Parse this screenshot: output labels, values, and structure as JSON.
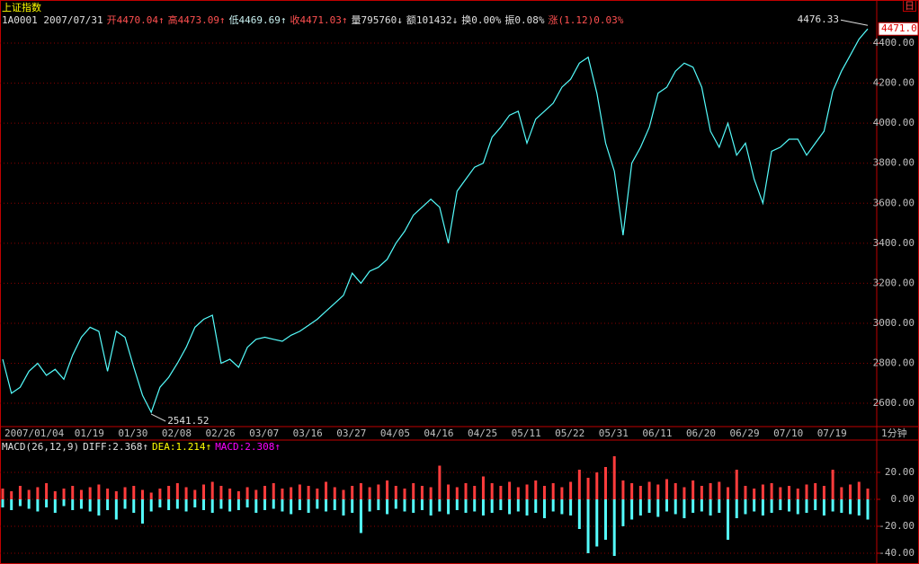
{
  "header": {
    "title": "上证指数",
    "icon": "日",
    "info": [
      {
        "text": "1A0001 2007/07/31",
        "color": "#e0e0e0"
      },
      {
        "text": "开4470.04↑",
        "color": "#ff5050"
      },
      {
        "text": "高4473.09↑",
        "color": "#ff5050"
      },
      {
        "text": "低4469.69↑",
        "color": "#c8f0f0"
      },
      {
        "text": "收4471.03↑",
        "color": "#ff5050"
      },
      {
        "text": "量795760↓",
        "color": "#e0e0e0"
      },
      {
        "text": "额101432↓",
        "color": "#e0e0e0"
      },
      {
        "text": "换0.00%",
        "color": "#e0e0e0"
      },
      {
        "text": "振0.08%",
        "color": "#e0e0e0"
      },
      {
        "text": "涨(1.12)0.03%",
        "color": "#ff5050"
      }
    ]
  },
  "chart_data": [
    {
      "type": "line",
      "categories": [
        "2007/01/04",
        null,
        null,
        null,
        null,
        null,
        null,
        null,
        "01/19",
        null,
        null,
        null,
        null,
        "01/30",
        null,
        null,
        null,
        null,
        "02/08",
        null,
        null,
        null,
        null,
        "02/26",
        null,
        null,
        null,
        null,
        "03/07",
        null,
        null,
        null,
        null,
        "03/16",
        null,
        null,
        null,
        null,
        "03/27",
        null,
        null,
        null,
        null,
        "04/05",
        null,
        null,
        null,
        null,
        "04/16",
        null,
        null,
        null,
        null,
        "04/25",
        null,
        null,
        null,
        null,
        "05/11",
        null,
        null,
        null,
        null,
        "05/22",
        null,
        null,
        null,
        null,
        "05/31",
        null,
        null,
        null,
        null,
        "06/11",
        null,
        null,
        null,
        null,
        "06/20",
        null,
        null,
        null,
        null,
        "06/29",
        null,
        null,
        null,
        null,
        "07/10",
        null,
        null,
        null,
        null,
        "07/19",
        null,
        null,
        null,
        null,
        null,
        null
      ],
      "values": [
        2820,
        2650,
        2680,
        2760,
        2800,
        2740,
        2770,
        2720,
        2840,
        2930,
        2980,
        2960,
        2760,
        2960,
        2930,
        2780,
        2640,
        2555,
        2680,
        2730,
        2800,
        2880,
        2980,
        3020,
        3040,
        2800,
        2820,
        2780,
        2880,
        2920,
        2930,
        2920,
        2910,
        2940,
        2960,
        2990,
        3020,
        3060,
        3100,
        3140,
        3250,
        3200,
        3260,
        3280,
        3320,
        3400,
        3460,
        3540,
        3580,
        3620,
        3580,
        3400,
        3660,
        3720,
        3780,
        3800,
        3930,
        3980,
        4040,
        4060,
        3900,
        4020,
        4060,
        4100,
        4180,
        4220,
        4300,
        4330,
        4150,
        3900,
        3760,
        3440,
        3800,
        3880,
        3980,
        4150,
        4180,
        4260,
        4300,
        4280,
        4180,
        3960,
        3880,
        4000,
        3840,
        3900,
        3720,
        3600,
        3860,
        3880,
        3920,
        3920,
        3840,
        3900,
        3960,
        4160,
        4260,
        4340,
        4420,
        4471.03
      ],
      "color": "#54fcfc",
      "ylim": [
        2488,
        4508
      ],
      "yticks": [
        {
          "value": 2600,
          "label": "2600.00"
        },
        {
          "value": 2800,
          "label": "2800.00"
        },
        {
          "value": 3000,
          "label": "3000.00"
        },
        {
          "value": 3200,
          "label": "3200.00"
        },
        {
          "value": 3400,
          "label": "3400.00"
        },
        {
          "value": 3600,
          "label": "3600.00"
        },
        {
          "value": 3800,
          "label": "3800.00"
        },
        {
          "value": 4000,
          "label": "4000.00"
        },
        {
          "value": 4200,
          "label": "4200.00"
        },
        {
          "value": 4400,
          "label": "4400.00"
        }
      ],
      "grid": true,
      "max_label": "4476.33",
      "min_label": "2541.52",
      "last_label": "4471.0",
      "x_unit": "1分钟"
    },
    {
      "type": "bar",
      "title_items": [
        {
          "text": "MACD(26,12,9)",
          "color": "#e0e0e0"
        },
        {
          "text": "DIFF:2.368↑",
          "color": "#e0e0e0"
        },
        {
          "text": "DEA:1.214↑",
          "color": "#ffff00"
        },
        {
          "text": "MACD:2.308↑",
          "color": "#ff00ff"
        }
      ],
      "series": [
        {
          "color": "#ff3c3c",
          "values": [
            8,
            6,
            10,
            7,
            9,
            12,
            6,
            8,
            10,
            7,
            9,
            11,
            8,
            6,
            9,
            10,
            7,
            5,
            8,
            10,
            12,
            9,
            7,
            11,
            13,
            10,
            8,
            6,
            9,
            7,
            10,
            12,
            8,
            9,
            11,
            10,
            8,
            13,
            9,
            7,
            10,
            12,
            9,
            11,
            14,
            10,
            8,
            12,
            10,
            9,
            25,
            11,
            9,
            12,
            10,
            17,
            12,
            10,
            13,
            9,
            11,
            14,
            10,
            12,
            9,
            13,
            22,
            16,
            20,
            24,
            32,
            14,
            12,
            10,
            13,
            11,
            15,
            12,
            9,
            14,
            10,
            12,
            13,
            9,
            22,
            10,
            8,
            11,
            12,
            9,
            10,
            8,
            11,
            12,
            10,
            22,
            9,
            11,
            13,
            8
          ]
        },
        {
          "color": "#54fcfc",
          "values": [
            -6,
            -8,
            -5,
            -7,
            -9,
            -6,
            -10,
            -5,
            -8,
            -7,
            -9,
            -12,
            -8,
            -15,
            -7,
            -10,
            -18,
            -9,
            -6,
            -8,
            -7,
            -9,
            -6,
            -8,
            -10,
            -7,
            -9,
            -8,
            -6,
            -10,
            -8,
            -7,
            -9,
            -11,
            -8,
            -10,
            -7,
            -9,
            -8,
            -12,
            -10,
            -25,
            -9,
            -8,
            -11,
            -7,
            -9,
            -10,
            -8,
            -12,
            -9,
            -11,
            -8,
            -10,
            -9,
            -12,
            -10,
            -8,
            -11,
            -9,
            -12,
            -10,
            -14,
            -9,
            -11,
            -12,
            -22,
            -40,
            -35,
            -30,
            -42,
            -20,
            -15,
            -12,
            -10,
            -13,
            -9,
            -11,
            -14,
            -10,
            -9,
            -12,
            -10,
            -30,
            -14,
            -11,
            -9,
            -12,
            -10,
            -8,
            -9,
            -11,
            -10,
            -8,
            -12,
            -9,
            -10,
            -11,
            -12,
            -15
          ]
        }
      ],
      "ylim": [
        -48,
        42
      ],
      "yticks": [
        {
          "value": 20,
          "label": "20.00"
        },
        {
          "value": 0,
          "label": "0.00"
        },
        {
          "value": -20,
          "label": "-20.00"
        },
        {
          "value": -40,
          "label": "-40.00"
        }
      ],
      "grid": true
    }
  ]
}
